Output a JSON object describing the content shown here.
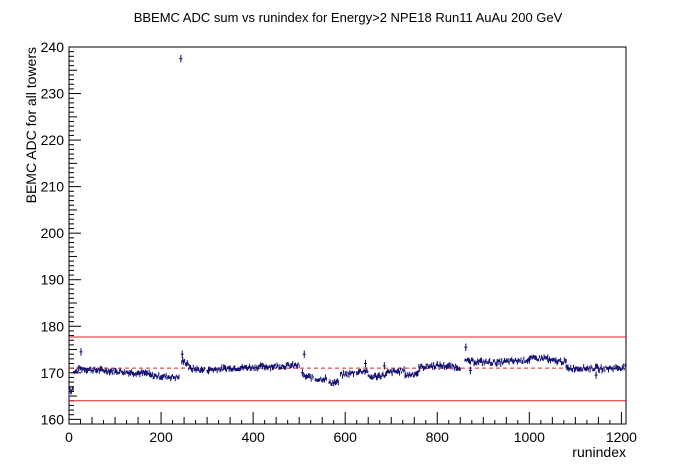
{
  "chart_data": {
    "type": "scatter",
    "title": "BBEMC ADC sum vs runindex for Energy>2 NPE18 Run11 AuAu 200 GeV",
    "xlabel": "runindex",
    "ylabel": "BEMC ADC for all towers",
    "xlim": [
      0,
      1210
    ],
    "ylim": [
      159,
      240
    ],
    "xticks": [
      0,
      200,
      400,
      600,
      800,
      1000,
      1200
    ],
    "yticks": [
      160,
      170,
      180,
      190,
      200,
      210,
      220,
      230,
      240
    ],
    "grid": false,
    "legend": "none",
    "marker_color": "#0a0a6e",
    "lines": [
      {
        "y": 177.7,
        "style": "solid",
        "color": "#e02020"
      },
      {
        "y": 171.0,
        "style": "dashed",
        "color": "#e02020"
      },
      {
        "y": 164.0,
        "style": "solid",
        "color": "#e02020"
      }
    ],
    "segments": [
      {
        "x0": 0,
        "x1": 3,
        "y0": 165,
        "y1": 168
      },
      {
        "x0": 3,
        "x1": 10,
        "y0": 166,
        "y1": 167
      },
      {
        "x0": 10,
        "x1": 20,
        "y0": 170,
        "y1": 170.5
      },
      {
        "x0": 20,
        "x1": 60,
        "y0": 171,
        "y1": 170.5
      },
      {
        "x0": 60,
        "x1": 120,
        "y0": 170.6,
        "y1": 170.2
      },
      {
        "x0": 120,
        "x1": 175,
        "y0": 170.2,
        "y1": 169.8
      },
      {
        "x0": 175,
        "x1": 240,
        "y0": 169.4,
        "y1": 169
      },
      {
        "x0": 245,
        "x1": 260,
        "y0": 172.5,
        "y1": 172
      },
      {
        "x0": 260,
        "x1": 295,
        "y0": 171,
        "y1": 170.5
      },
      {
        "x0": 300,
        "x1": 350,
        "y0": 170.6,
        "y1": 171
      },
      {
        "x0": 350,
        "x1": 420,
        "y0": 171,
        "y1": 171.3
      },
      {
        "x0": 420,
        "x1": 500,
        "y0": 171.3,
        "y1": 171.6
      },
      {
        "x0": 510,
        "x1": 530,
        "y0": 169.2,
        "y1": 169
      },
      {
        "x0": 535,
        "x1": 560,
        "y0": 168.6,
        "y1": 168.8
      },
      {
        "x0": 565,
        "x1": 585,
        "y0": 167.8,
        "y1": 168
      },
      {
        "x0": 590,
        "x1": 620,
        "y0": 169.5,
        "y1": 170
      },
      {
        "x0": 625,
        "x1": 650,
        "y0": 170.2,
        "y1": 170.5
      },
      {
        "x0": 650,
        "x1": 690,
        "y0": 169,
        "y1": 169.6
      },
      {
        "x0": 690,
        "x1": 730,
        "y0": 170,
        "y1": 170.5
      },
      {
        "x0": 730,
        "x1": 760,
        "y0": 169.4,
        "y1": 170
      },
      {
        "x0": 760,
        "x1": 800,
        "y0": 171.2,
        "y1": 171.6
      },
      {
        "x0": 800,
        "x1": 850,
        "y0": 171.6,
        "y1": 171.2
      },
      {
        "x0": 860,
        "x1": 930,
        "y0": 172.5,
        "y1": 172.2
      },
      {
        "x0": 930,
        "x1": 1000,
        "y0": 172.2,
        "y1": 172.8
      },
      {
        "x0": 1000,
        "x1": 1040,
        "y0": 173,
        "y1": 173.2
      },
      {
        "x0": 1040,
        "x1": 1080,
        "y0": 172.6,
        "y1": 172.4
      },
      {
        "x0": 1080,
        "x1": 1150,
        "y0": 171,
        "y1": 171
      },
      {
        "x0": 1150,
        "x1": 1210,
        "y0": 170.8,
        "y1": 171.2
      }
    ],
    "points": [
      {
        "x": 243,
        "y": 237.5
      },
      {
        "x": 26,
        "y": 174.5
      },
      {
        "x": 246,
        "y": 174
      },
      {
        "x": 303,
        "y": 170.5
      },
      {
        "x": 507,
        "y": 170
      },
      {
        "x": 511,
        "y": 174
      },
      {
        "x": 644,
        "y": 172
      },
      {
        "x": 685,
        "y": 171.5
      },
      {
        "x": 862,
        "y": 175.5
      },
      {
        "x": 872,
        "y": 170.5
      },
      {
        "x": 1145,
        "y": 169.5
      }
    ]
  }
}
